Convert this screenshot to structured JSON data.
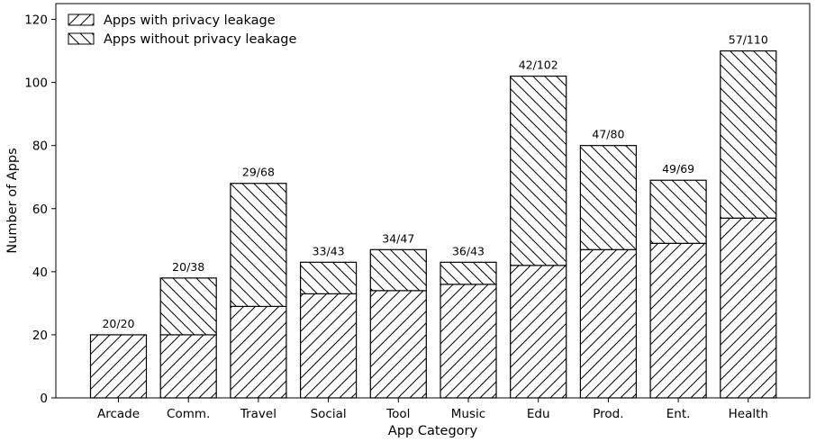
{
  "chart_data": {
    "type": "bar",
    "stacked": true,
    "categories": [
      "Arcade",
      "Comm.",
      "Travel",
      "Social",
      "Tool",
      "Music",
      "Edu",
      "Prod.",
      "Ent.",
      "Health"
    ],
    "series": [
      {
        "name": "Apps with privacy leakage",
        "values": [
          20,
          20,
          29,
          33,
          34,
          36,
          42,
          47,
          49,
          57
        ],
        "hatch": "forward-diagonal"
      },
      {
        "name": "Apps without privacy leakage",
        "values": [
          0,
          18,
          39,
          10,
          13,
          7,
          60,
          33,
          20,
          53
        ],
        "hatch": "back-diagonal"
      }
    ],
    "bar_labels": [
      "20/20",
      "20/38",
      "29/68",
      "33/43",
      "34/47",
      "36/43",
      "42/102",
      "47/80",
      "49/69",
      "57/110"
    ],
    "xlabel": "App Category",
    "ylabel": "Number of Apps",
    "ylim": [
      0,
      125
    ],
    "yticks": [
      0,
      20,
      40,
      60,
      80,
      100,
      120
    ],
    "grid": false,
    "legend_position": "top-left",
    "colors": {
      "fill": "#ffffff",
      "edge": "#000000",
      "hatch": "#000000"
    }
  }
}
